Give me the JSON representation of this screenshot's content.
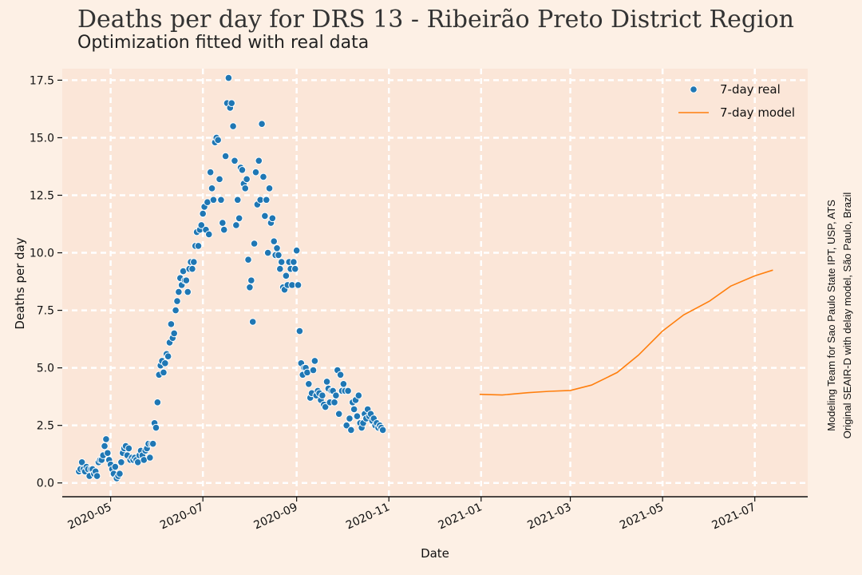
{
  "title": "Deaths per day for DRS 13 - Ribeirão Preto District Region",
  "subtitle": "Optimization fitted with real data",
  "credits": [
    "Modeling Team for Sao Paulo State IPT, USP, ATS",
    "Original SEAIR-D with delay model, São Paulo, Brazil"
  ],
  "colors": {
    "background": "#fdf0e5",
    "plot_area": "#fbe6d8",
    "grid": "#ffffff",
    "real": "#1f77b4",
    "model": "#ff7f0e"
  },
  "chart_data": {
    "type": "scatter",
    "xlabel": "Date",
    "ylabel": "Deaths per day",
    "xlim": [
      "2020-03-30",
      "2021-08-05"
    ],
    "ylim": [
      -0.6,
      18.0
    ],
    "x_ticks": [
      {
        "date": "2020-05-01",
        "label": "2020-05"
      },
      {
        "date": "2020-07-01",
        "label": "2020-07"
      },
      {
        "date": "2020-09-01",
        "label": "2020-09"
      },
      {
        "date": "2020-11-01",
        "label": "2020-11"
      },
      {
        "date": "2021-01-01",
        "label": "2021-01"
      },
      {
        "date": "2021-03-01",
        "label": "2021-03"
      },
      {
        "date": "2021-05-01",
        "label": "2021-05"
      },
      {
        "date": "2021-07-01",
        "label": "2021-07"
      }
    ],
    "y_ticks": [
      {
        "value": 0,
        "label": "0.0"
      },
      {
        "value": 2.5,
        "label": "2.5"
      },
      {
        "value": 5,
        "label": "5.0"
      },
      {
        "value": 7.5,
        "label": "7.5"
      },
      {
        "value": 10,
        "label": "10.0"
      },
      {
        "value": 12.5,
        "label": "12.5"
      },
      {
        "value": 15,
        "label": "15.0"
      },
      {
        "value": 17.5,
        "label": "17.5"
      }
    ],
    "grid": true,
    "legend_position": "top-right",
    "series": [
      {
        "name": "7-day real",
        "kind": "scatter",
        "points": [
          [
            "2020-04-10",
            0.5
          ],
          [
            "2020-04-11",
            0.6
          ],
          [
            "2020-04-12",
            0.9
          ],
          [
            "2020-04-13",
            0.6
          ],
          [
            "2020-04-14",
            0.5
          ],
          [
            "2020-04-15",
            0.7
          ],
          [
            "2020-04-16",
            0.6
          ],
          [
            "2020-04-17",
            0.3
          ],
          [
            "2020-04-18",
            0.6
          ],
          [
            "2020-04-19",
            0.6
          ],
          [
            "2020-04-20",
            0.4
          ],
          [
            "2020-04-21",
            0.5
          ],
          [
            "2020-04-22",
            0.3
          ],
          [
            "2020-04-23",
            0.9
          ],
          [
            "2020-04-24",
            1.0
          ],
          [
            "2020-04-25",
            1.0
          ],
          [
            "2020-04-26",
            1.2
          ],
          [
            "2020-04-27",
            1.6
          ],
          [
            "2020-04-28",
            1.9
          ],
          [
            "2020-04-29",
            1.3
          ],
          [
            "2020-04-30",
            1.0
          ],
          [
            "2020-05-01",
            0.8
          ],
          [
            "2020-05-02",
            0.6
          ],
          [
            "2020-05-03",
            0.4
          ],
          [
            "2020-05-04",
            0.7
          ],
          [
            "2020-05-05",
            0.2
          ],
          [
            "2020-05-06",
            0.3
          ],
          [
            "2020-05-07",
            0.4
          ],
          [
            "2020-05-08",
            0.9
          ],
          [
            "2020-05-09",
            1.3
          ],
          [
            "2020-05-10",
            1.5
          ],
          [
            "2020-05-11",
            1.6
          ],
          [
            "2020-05-12",
            1.2
          ],
          [
            "2020-05-13",
            1.5
          ],
          [
            "2020-05-14",
            1.0
          ],
          [
            "2020-05-15",
            1.1
          ],
          [
            "2020-05-16",
            1.0
          ],
          [
            "2020-05-17",
            1.1
          ],
          [
            "2020-05-18",
            1.0
          ],
          [
            "2020-05-19",
            0.9
          ],
          [
            "2020-05-20",
            1.2
          ],
          [
            "2020-05-21",
            1.4
          ],
          [
            "2020-05-22",
            1.2
          ],
          [
            "2020-05-23",
            1.0
          ],
          [
            "2020-05-24",
            1.4
          ],
          [
            "2020-05-25",
            1.5
          ],
          [
            "2020-05-26",
            1.7
          ],
          [
            "2020-05-27",
            1.1
          ],
          [
            "2020-05-28",
            1.7
          ],
          [
            "2020-05-29",
            1.7
          ],
          [
            "2020-05-30",
            2.6
          ],
          [
            "2020-05-31",
            2.4
          ],
          [
            "2020-06-01",
            3.5
          ],
          [
            "2020-06-02",
            4.7
          ],
          [
            "2020-06-03",
            5.1
          ],
          [
            "2020-06-04",
            5.3
          ],
          [
            "2020-06-05",
            4.8
          ],
          [
            "2020-06-06",
            5.2
          ],
          [
            "2020-06-07",
            5.6
          ],
          [
            "2020-06-08",
            5.5
          ],
          [
            "2020-06-09",
            6.1
          ],
          [
            "2020-06-10",
            6.9
          ],
          [
            "2020-06-11",
            6.3
          ],
          [
            "2020-06-12",
            6.5
          ],
          [
            "2020-06-13",
            7.5
          ],
          [
            "2020-06-14",
            7.9
          ],
          [
            "2020-06-15",
            8.3
          ],
          [
            "2020-06-16",
            8.9
          ],
          [
            "2020-06-17",
            8.6
          ],
          [
            "2020-06-18",
            9.2
          ],
          [
            "2020-06-19",
            8.8
          ],
          [
            "2020-06-20",
            8.8
          ],
          [
            "2020-06-21",
            8.3
          ],
          [
            "2020-06-22",
            9.3
          ],
          [
            "2020-06-23",
            9.6
          ],
          [
            "2020-06-24",
            9.3
          ],
          [
            "2020-06-25",
            9.6
          ],
          [
            "2020-06-26",
            10.3
          ],
          [
            "2020-06-27",
            10.9
          ],
          [
            "2020-06-28",
            10.3
          ],
          [
            "2020-06-29",
            11.0
          ],
          [
            "2020-06-30",
            11.2
          ],
          [
            "2020-07-01",
            11.7
          ],
          [
            "2020-07-02",
            12.0
          ],
          [
            "2020-07-03",
            11.0
          ],
          [
            "2020-07-04",
            12.2
          ],
          [
            "2020-07-05",
            10.8
          ],
          [
            "2020-07-06",
            13.5
          ],
          [
            "2020-07-07",
            12.8
          ],
          [
            "2020-07-08",
            12.3
          ],
          [
            "2020-07-09",
            14.8
          ],
          [
            "2020-07-10",
            15.0
          ],
          [
            "2020-07-11",
            14.9
          ],
          [
            "2020-07-12",
            13.2
          ],
          [
            "2020-07-13",
            12.3
          ],
          [
            "2020-07-14",
            11.3
          ],
          [
            "2020-07-15",
            11.0
          ],
          [
            "2020-07-16",
            14.2
          ],
          [
            "2020-07-17",
            16.5
          ],
          [
            "2020-07-18",
            17.6
          ],
          [
            "2020-07-19",
            16.3
          ],
          [
            "2020-07-20",
            16.5
          ],
          [
            "2020-07-21",
            15.5
          ],
          [
            "2020-07-22",
            14.0
          ],
          [
            "2020-07-23",
            11.2
          ],
          [
            "2020-07-24",
            12.3
          ],
          [
            "2020-07-25",
            11.5
          ],
          [
            "2020-07-26",
            13.7
          ],
          [
            "2020-07-27",
            13.6
          ],
          [
            "2020-07-28",
            13.0
          ],
          [
            "2020-07-29",
            12.8
          ],
          [
            "2020-07-30",
            13.2
          ],
          [
            "2020-07-31",
            9.7
          ],
          [
            "2020-08-01",
            8.5
          ],
          [
            "2020-08-02",
            8.8
          ],
          [
            "2020-08-03",
            7.0
          ],
          [
            "2020-08-04",
            10.4
          ],
          [
            "2020-08-05",
            13.5
          ],
          [
            "2020-08-06",
            12.1
          ],
          [
            "2020-08-07",
            14.0
          ],
          [
            "2020-08-08",
            12.3
          ],
          [
            "2020-08-09",
            15.6
          ],
          [
            "2020-08-10",
            13.3
          ],
          [
            "2020-08-11",
            11.6
          ],
          [
            "2020-08-12",
            12.3
          ],
          [
            "2020-08-13",
            10.0
          ],
          [
            "2020-08-14",
            12.8
          ],
          [
            "2020-08-15",
            11.3
          ],
          [
            "2020-08-16",
            11.5
          ],
          [
            "2020-08-17",
            10.5
          ],
          [
            "2020-08-18",
            9.9
          ],
          [
            "2020-08-19",
            10.2
          ],
          [
            "2020-08-20",
            9.9
          ],
          [
            "2020-08-21",
            9.3
          ],
          [
            "2020-08-22",
            9.6
          ],
          [
            "2020-08-23",
            8.5
          ],
          [
            "2020-08-24",
            8.4
          ],
          [
            "2020-08-25",
            9.0
          ],
          [
            "2020-08-26",
            8.6
          ],
          [
            "2020-08-27",
            9.6
          ],
          [
            "2020-08-28",
            9.3
          ],
          [
            "2020-08-29",
            8.6
          ],
          [
            "2020-08-30",
            9.6
          ],
          [
            "2020-08-31",
            9.3
          ],
          [
            "2020-09-01",
            10.1
          ],
          [
            "2020-09-02",
            8.6
          ],
          [
            "2020-09-03",
            6.6
          ],
          [
            "2020-09-04",
            5.2
          ],
          [
            "2020-09-05",
            4.7
          ],
          [
            "2020-09-06",
            5.0
          ],
          [
            "2020-09-07",
            5.0
          ],
          [
            "2020-09-08",
            4.8
          ],
          [
            "2020-09-09",
            4.3
          ],
          [
            "2020-09-10",
            3.7
          ],
          [
            "2020-09-11",
            3.9
          ],
          [
            "2020-09-12",
            4.9
          ],
          [
            "2020-09-13",
            5.3
          ],
          [
            "2020-09-14",
            3.8
          ],
          [
            "2020-09-15",
            4.0
          ],
          [
            "2020-09-16",
            3.9
          ],
          [
            "2020-09-17",
            3.6
          ],
          [
            "2020-09-18",
            3.8
          ],
          [
            "2020-09-19",
            3.4
          ],
          [
            "2020-09-20",
            3.3
          ],
          [
            "2020-09-21",
            4.4
          ],
          [
            "2020-09-22",
            4.1
          ],
          [
            "2020-09-23",
            3.5
          ],
          [
            "2020-09-24",
            4.0
          ],
          [
            "2020-09-25",
            4.0
          ],
          [
            "2020-09-26",
            3.5
          ],
          [
            "2020-09-27",
            3.8
          ],
          [
            "2020-09-28",
            4.9
          ],
          [
            "2020-09-29",
            3.0
          ],
          [
            "2020-09-30",
            4.7
          ],
          [
            "2020-10-01",
            4.0
          ],
          [
            "2020-10-02",
            4.3
          ],
          [
            "2020-10-03",
            4.0
          ],
          [
            "2020-10-04",
            2.5
          ],
          [
            "2020-10-05",
            4.0
          ],
          [
            "2020-10-06",
            2.8
          ],
          [
            "2020-10-07",
            2.3
          ],
          [
            "2020-10-08",
            3.5
          ],
          [
            "2020-10-09",
            3.2
          ],
          [
            "2020-10-10",
            3.6
          ],
          [
            "2020-10-11",
            2.9
          ],
          [
            "2020-10-12",
            3.8
          ],
          [
            "2020-10-13",
            2.6
          ],
          [
            "2020-10-14",
            2.4
          ],
          [
            "2020-10-15",
            2.6
          ],
          [
            "2020-10-16",
            3.0
          ],
          [
            "2020-10-17",
            2.8
          ],
          [
            "2020-10-18",
            3.2
          ],
          [
            "2020-10-19",
            2.9
          ],
          [
            "2020-10-20",
            3.0
          ],
          [
            "2020-10-21",
            2.7
          ],
          [
            "2020-10-22",
            2.8
          ],
          [
            "2020-10-23",
            2.5
          ],
          [
            "2020-10-24",
            2.6
          ],
          [
            "2020-10-25",
            2.4
          ],
          [
            "2020-10-26",
            2.5
          ],
          [
            "2020-10-27",
            2.4
          ],
          [
            "2020-10-28",
            2.3
          ]
        ]
      },
      {
        "name": "7-day model",
        "kind": "line",
        "points": [
          [
            "2020-12-31",
            3.85
          ],
          [
            "2021-01-15",
            3.82
          ],
          [
            "2021-02-01",
            3.92
          ],
          [
            "2021-02-15",
            3.98
          ],
          [
            "2021-03-01",
            4.02
          ],
          [
            "2021-03-15",
            4.25
          ],
          [
            "2021-04-01",
            4.8
          ],
          [
            "2021-04-15",
            5.55
          ],
          [
            "2021-05-01",
            6.6
          ],
          [
            "2021-05-15",
            7.3
          ],
          [
            "2021-06-01",
            7.9
          ],
          [
            "2021-06-15",
            8.55
          ],
          [
            "2021-07-01",
            9.0
          ],
          [
            "2021-07-13",
            9.25
          ]
        ]
      }
    ]
  }
}
